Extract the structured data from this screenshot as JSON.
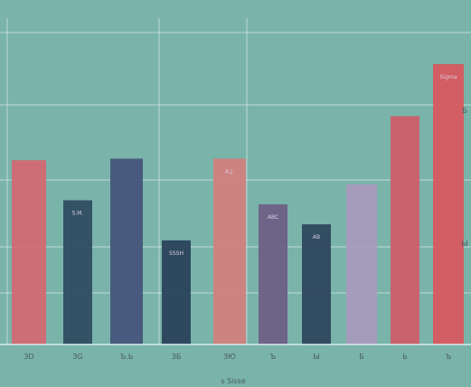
{
  "chart_data": {
    "type": "bar",
    "categories": [
      "ЗD",
      "ЗG",
      "Ъ.Ь",
      "ЗБ",
      "ЗЮ",
      "Ъ",
      "Ы",
      "Б",
      "Ь",
      "Ъ"
    ],
    "series": [
      {
        "values": [
          230,
          180,
          232,
          130,
          232,
          175,
          150,
          200,
          285,
          350
        ],
        "colors": [
          "#d26a73",
          "#2f4d62",
          "#46557a",
          "#2a435b",
          "#d2817d",
          "#6d6085",
          "#2e475e",
          "#a89bbd",
          "#cc5e69",
          "#d7585f"
        ]
      }
    ],
    "ylim": [
      0,
      430
    ],
    "grid": true,
    "bar_annotations": [
      "",
      "S.M.",
      "",
      "SSSH",
      "A.J.",
      "ABC",
      "AB",
      "",
      "",
      "Sigma"
    ],
    "caption": "s  Sisse",
    "right_ticks": [
      "Б",
      "Ы"
    ]
  }
}
